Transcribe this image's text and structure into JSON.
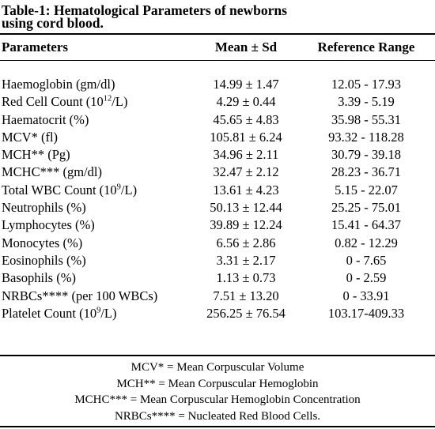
{
  "title": {
    "line1": "Table-1: Hematological Parameters of newborns",
    "line2": "using cord blood."
  },
  "headers": {
    "parameters": "Parameters",
    "mean": "Mean ± Sd",
    "range": "Reference Range"
  },
  "rows": [
    {
      "param": "Haemoglobin (gm/dl)",
      "mean": "14.99 ± 1.47",
      "range": "12.05 - 17.93"
    },
    {
      "param_pre": "Red Cell Count (10",
      "param_sup": "12",
      "param_post": "/L)",
      "mean": "4.29 ± 0.44",
      "range": "3.39 - 5.19"
    },
    {
      "param": "Haematocrit (%)",
      "mean": "45.65 ± 4.83",
      "range": "35.98 - 55.31"
    },
    {
      "param": "MCV* (fl)",
      "mean": "105.81 ± 6.24",
      "range": "93.32 - 118.28"
    },
    {
      "param": "MCH** (Pg)",
      "mean": "34.96 ± 2.11",
      "range": "30.79 - 39.18"
    },
    {
      "param": "MCHC*** (gm/dl)",
      "mean": "32.47 ± 2.12",
      "range": "28.23 - 36.71"
    },
    {
      "param_pre": "Total WBC Count (10",
      "param_sup": "9",
      "param_post": "/L)",
      "mean": "13.61 ± 4.23",
      "range": "5.15 - 22.07"
    },
    {
      "param": "Neutrophils (%)",
      "mean": "50.13 ± 12.44",
      "range": "25.25 - 75.01"
    },
    {
      "param": "Lymphocytes (%)",
      "mean": "39.89 ± 12.24",
      "range": "15.41 - 64.37"
    },
    {
      "param": "Monocytes (%)",
      "mean": "6.56 ± 2.86",
      "range": "0.82 - 12.29"
    },
    {
      "param": "Eosinophils (%)",
      "mean": "3.31 ± 2.17",
      "range": "0 - 7.65"
    },
    {
      "param": "Basophils (%)",
      "mean": "1.13 ± 0.73",
      "range": "0 - 2.59"
    },
    {
      "param": "NRBCs**** (per 100 WBCs)",
      "mean": "7.51 ± 13.20",
      "range": "0 - 33.91"
    },
    {
      "param_pre": "Platelet Count (10",
      "param_sup": "9",
      "param_post": "/L)",
      "mean": "256.25 ± 76.54",
      "range": "103.17-409.33"
    }
  ],
  "footnotes": [
    "MCV* = Mean Corpuscular Volume",
    "MCH** = Mean Corpuscular Hemoglobin",
    "MCHC*** = Mean Corpuscular Hemoglobin Concentration",
    "NRBCs**** = Nucleated Red Blood Cells."
  ]
}
